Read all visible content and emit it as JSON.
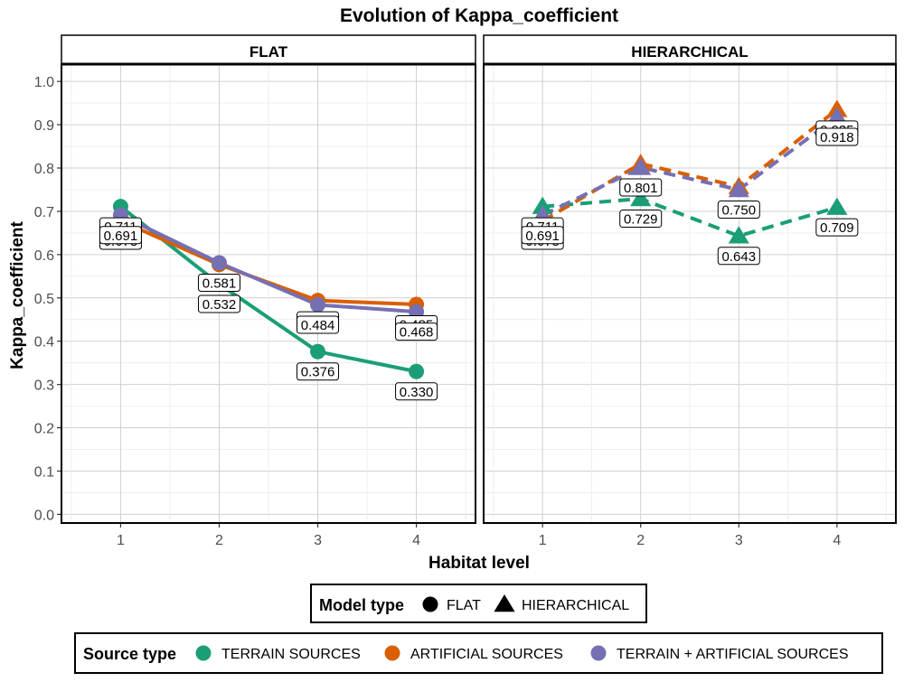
{
  "chart_data": {
    "type": "line",
    "title": "Evolution of Kappa_coefficient",
    "xlabel": "Habitat level",
    "ylabel": "Kappa_coefficient",
    "x": [
      1,
      2,
      3,
      4
    ],
    "xlim": [
      0.4,
      4.6
    ],
    "ylim": [
      -0.02,
      1.04
    ],
    "y_ticks": [
      "0.0",
      "0.1",
      "0.2",
      "0.3",
      "0.4",
      "0.5",
      "0.6",
      "0.7",
      "0.8",
      "0.9",
      "1.0"
    ],
    "x_ticks": [
      "1",
      "2",
      "3",
      "4"
    ],
    "grid": true,
    "panels": [
      {
        "label": "FLAT",
        "model": "FLAT",
        "series": [
          {
            "name": "TERRAIN SOURCES",
            "values": [
              0.711,
              0.532,
              0.376,
              0.33
            ],
            "labels": [
              "0.711",
              "0.532",
              "0.376",
              "0.330"
            ]
          },
          {
            "name": "ARTIFICIAL SOURCES",
            "values": [
              0.678,
              0.577,
              0.494,
              0.485
            ],
            "labels": [
              "0.678",
              "",
              "0.494",
              "0.485"
            ]
          },
          {
            "name": "TERRAIN + ARTIFICIAL SOURCES",
            "values": [
              0.691,
              0.581,
              0.484,
              0.468
            ],
            "labels": [
              "0.691",
              "0.581",
              "0.484",
              "0.468"
            ]
          }
        ]
      },
      {
        "label": "HIERARCHICAL",
        "model": "HIERARCHICAL",
        "series": [
          {
            "name": "TERRAIN SOURCES",
            "values": [
              0.711,
              0.729,
              0.643,
              0.709
            ],
            "labels": [
              "0.711",
              "0.729",
              "0.643",
              "0.709"
            ]
          },
          {
            "name": "ARTIFICIAL SOURCES",
            "values": [
              0.678,
              0.81,
              0.757,
              0.935
            ],
            "labels": [
              "0.678",
              "",
              "",
              "0.935"
            ]
          },
          {
            "name": "TERRAIN + ARTIFICIAL SOURCES",
            "values": [
              0.691,
              0.801,
              0.75,
              0.918
            ],
            "labels": [
              "0.691",
              "0.801",
              "0.750",
              "0.918"
            ]
          }
        ]
      }
    ],
    "legends": {
      "model": {
        "title": "Model type",
        "items": [
          "FLAT",
          "HIERARCHICAL"
        ]
      },
      "source": {
        "title": "Source type",
        "items": [
          "TERRAIN SOURCES",
          "ARTIFICIAL SOURCES",
          "TERRAIN + ARTIFICIAL SOURCES"
        ]
      }
    },
    "colors": {
      "TERRAIN SOURCES": "#1b9e77",
      "ARTIFICIAL SOURCES": "#d95f02",
      "TERRAIN + ARTIFICIAL SOURCES": "#7570b3"
    }
  }
}
